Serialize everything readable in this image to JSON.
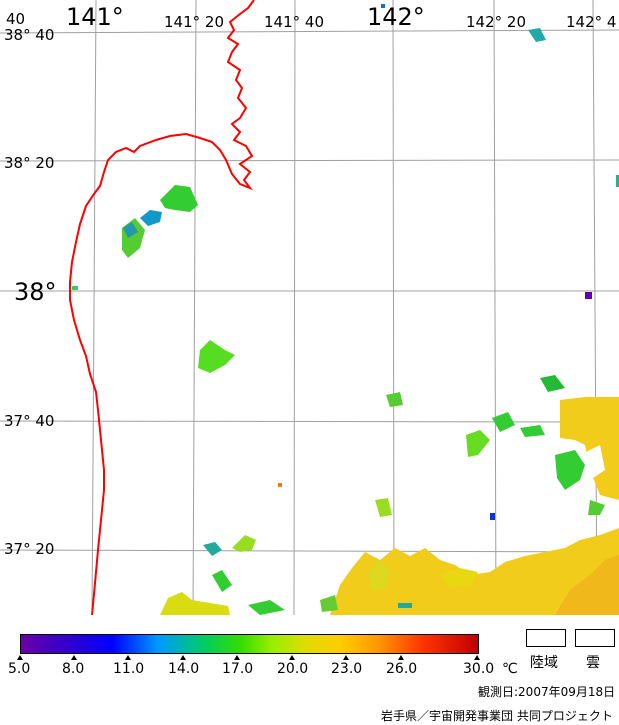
{
  "map": {
    "top_labels": [
      "40",
      "141°",
      "141° 20",
      "141° 40",
      "142°",
      "142° 20",
      "142° 4"
    ],
    "left_labels": [
      "38° 40",
      "38° 20",
      "38°",
      "37° 40",
      "37° 20"
    ],
    "grid_color": "#a0a0a0",
    "coast_color": "#ff0000"
  },
  "legend": {
    "ticks": [
      "5.0",
      "8.0",
      "11.0",
      "14.0",
      "17.0",
      "20.0",
      "23.0",
      "26.0",
      "30.0"
    ],
    "unit": "℃",
    "land_label": "陸域",
    "cloud_label": "雲"
  },
  "footer": {
    "observation_date": "観測日:2007年09月18日",
    "credit": "岩手県／宇宙開発事業団 共同プロジェクト"
  }
}
